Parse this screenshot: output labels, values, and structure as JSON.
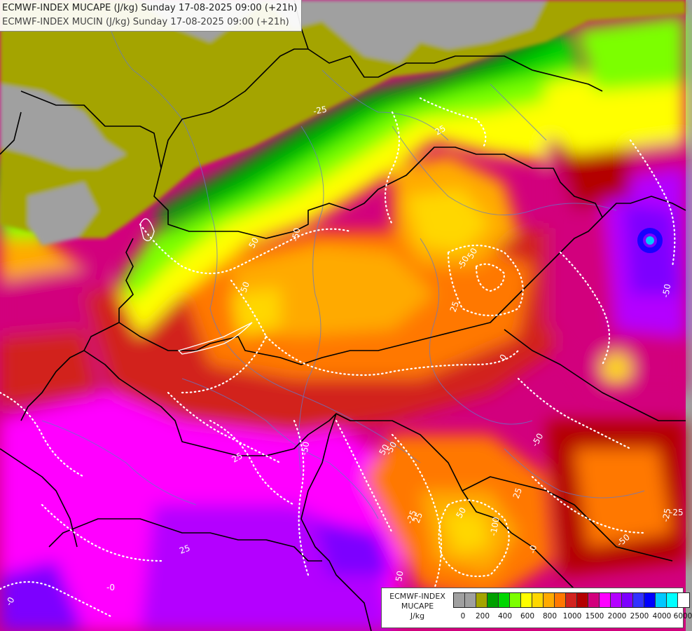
{
  "title": {
    "line1": "ECMWF-INDEX MUCAPE (J/kg) Sunday 17-08-2025 09:00 (+21h)",
    "line2": "ECMWF-INDEX MUCIN (J/kg) Sunday 17-08-2025 09:00 (+21h)"
  },
  "legend": {
    "title_lines": [
      "ECMWF-INDEX",
      "MUCAPE",
      "J/kg"
    ],
    "colors": [
      "#a0a0a0",
      "#a0a0a0",
      "#a4a400",
      "#00a000",
      "#00d700",
      "#7cff00",
      "#ffff00",
      "#ffd700",
      "#ffaa00",
      "#ff7800",
      "#d2231e",
      "#b40000",
      "#d2007d",
      "#ff00ff",
      "#b400ff",
      "#7d00ff",
      "#3232ff",
      "#0000ff",
      "#00c8ff",
      "#00ffff",
      "#ffffff"
    ],
    "tick_labels": [
      "0",
      "200",
      "400",
      "600",
      "800",
      "1000",
      "1500",
      "2000",
      "2500",
      "4000",
      "6000"
    ]
  },
  "map": {
    "cin_labels": [
      "25",
      "-25",
      "50",
      "-50",
      "25",
      "50",
      "-50",
      "25",
      "0",
      "-0",
      "50",
      "-50",
      "25",
      "50",
      "-50",
      "-25",
      "50",
      "-100",
      "-50",
      "25",
      "-50",
      "-0",
      "-50",
      "-25",
      "50",
      "25",
      "-0",
      "-25"
    ]
  }
}
